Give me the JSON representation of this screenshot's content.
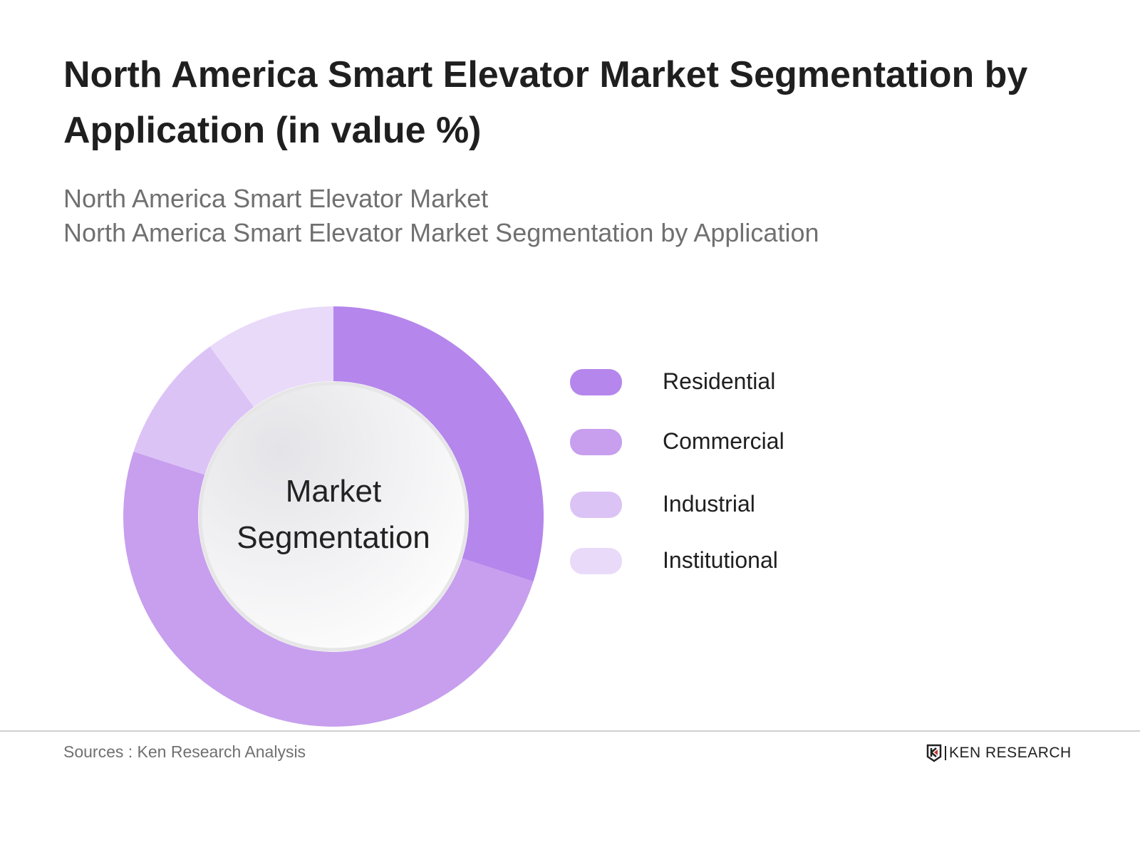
{
  "title": "North America Smart Elevator Market Segmentation by Application (in value %)",
  "subtitle1": "North America Smart Elevator Market",
  "subtitle2": "North America Smart Elevator Market Segmentation by Application",
  "center_label": [
    "Market",
    "Segmentation"
  ],
  "source": "Sources : Ken Research Analysis",
  "logo": "KEN RESEARCH",
  "chart_data": {
    "type": "pie",
    "style": "donut",
    "categories": [
      "Residential",
      "Commercial",
      "Industrial",
      "Institutional"
    ],
    "values": [
      30,
      50,
      10,
      10
    ],
    "colors": [
      "#b586ec",
      "#c79fee",
      "#dcc3f6",
      "#e9daf9"
    ],
    "legend": "right"
  }
}
